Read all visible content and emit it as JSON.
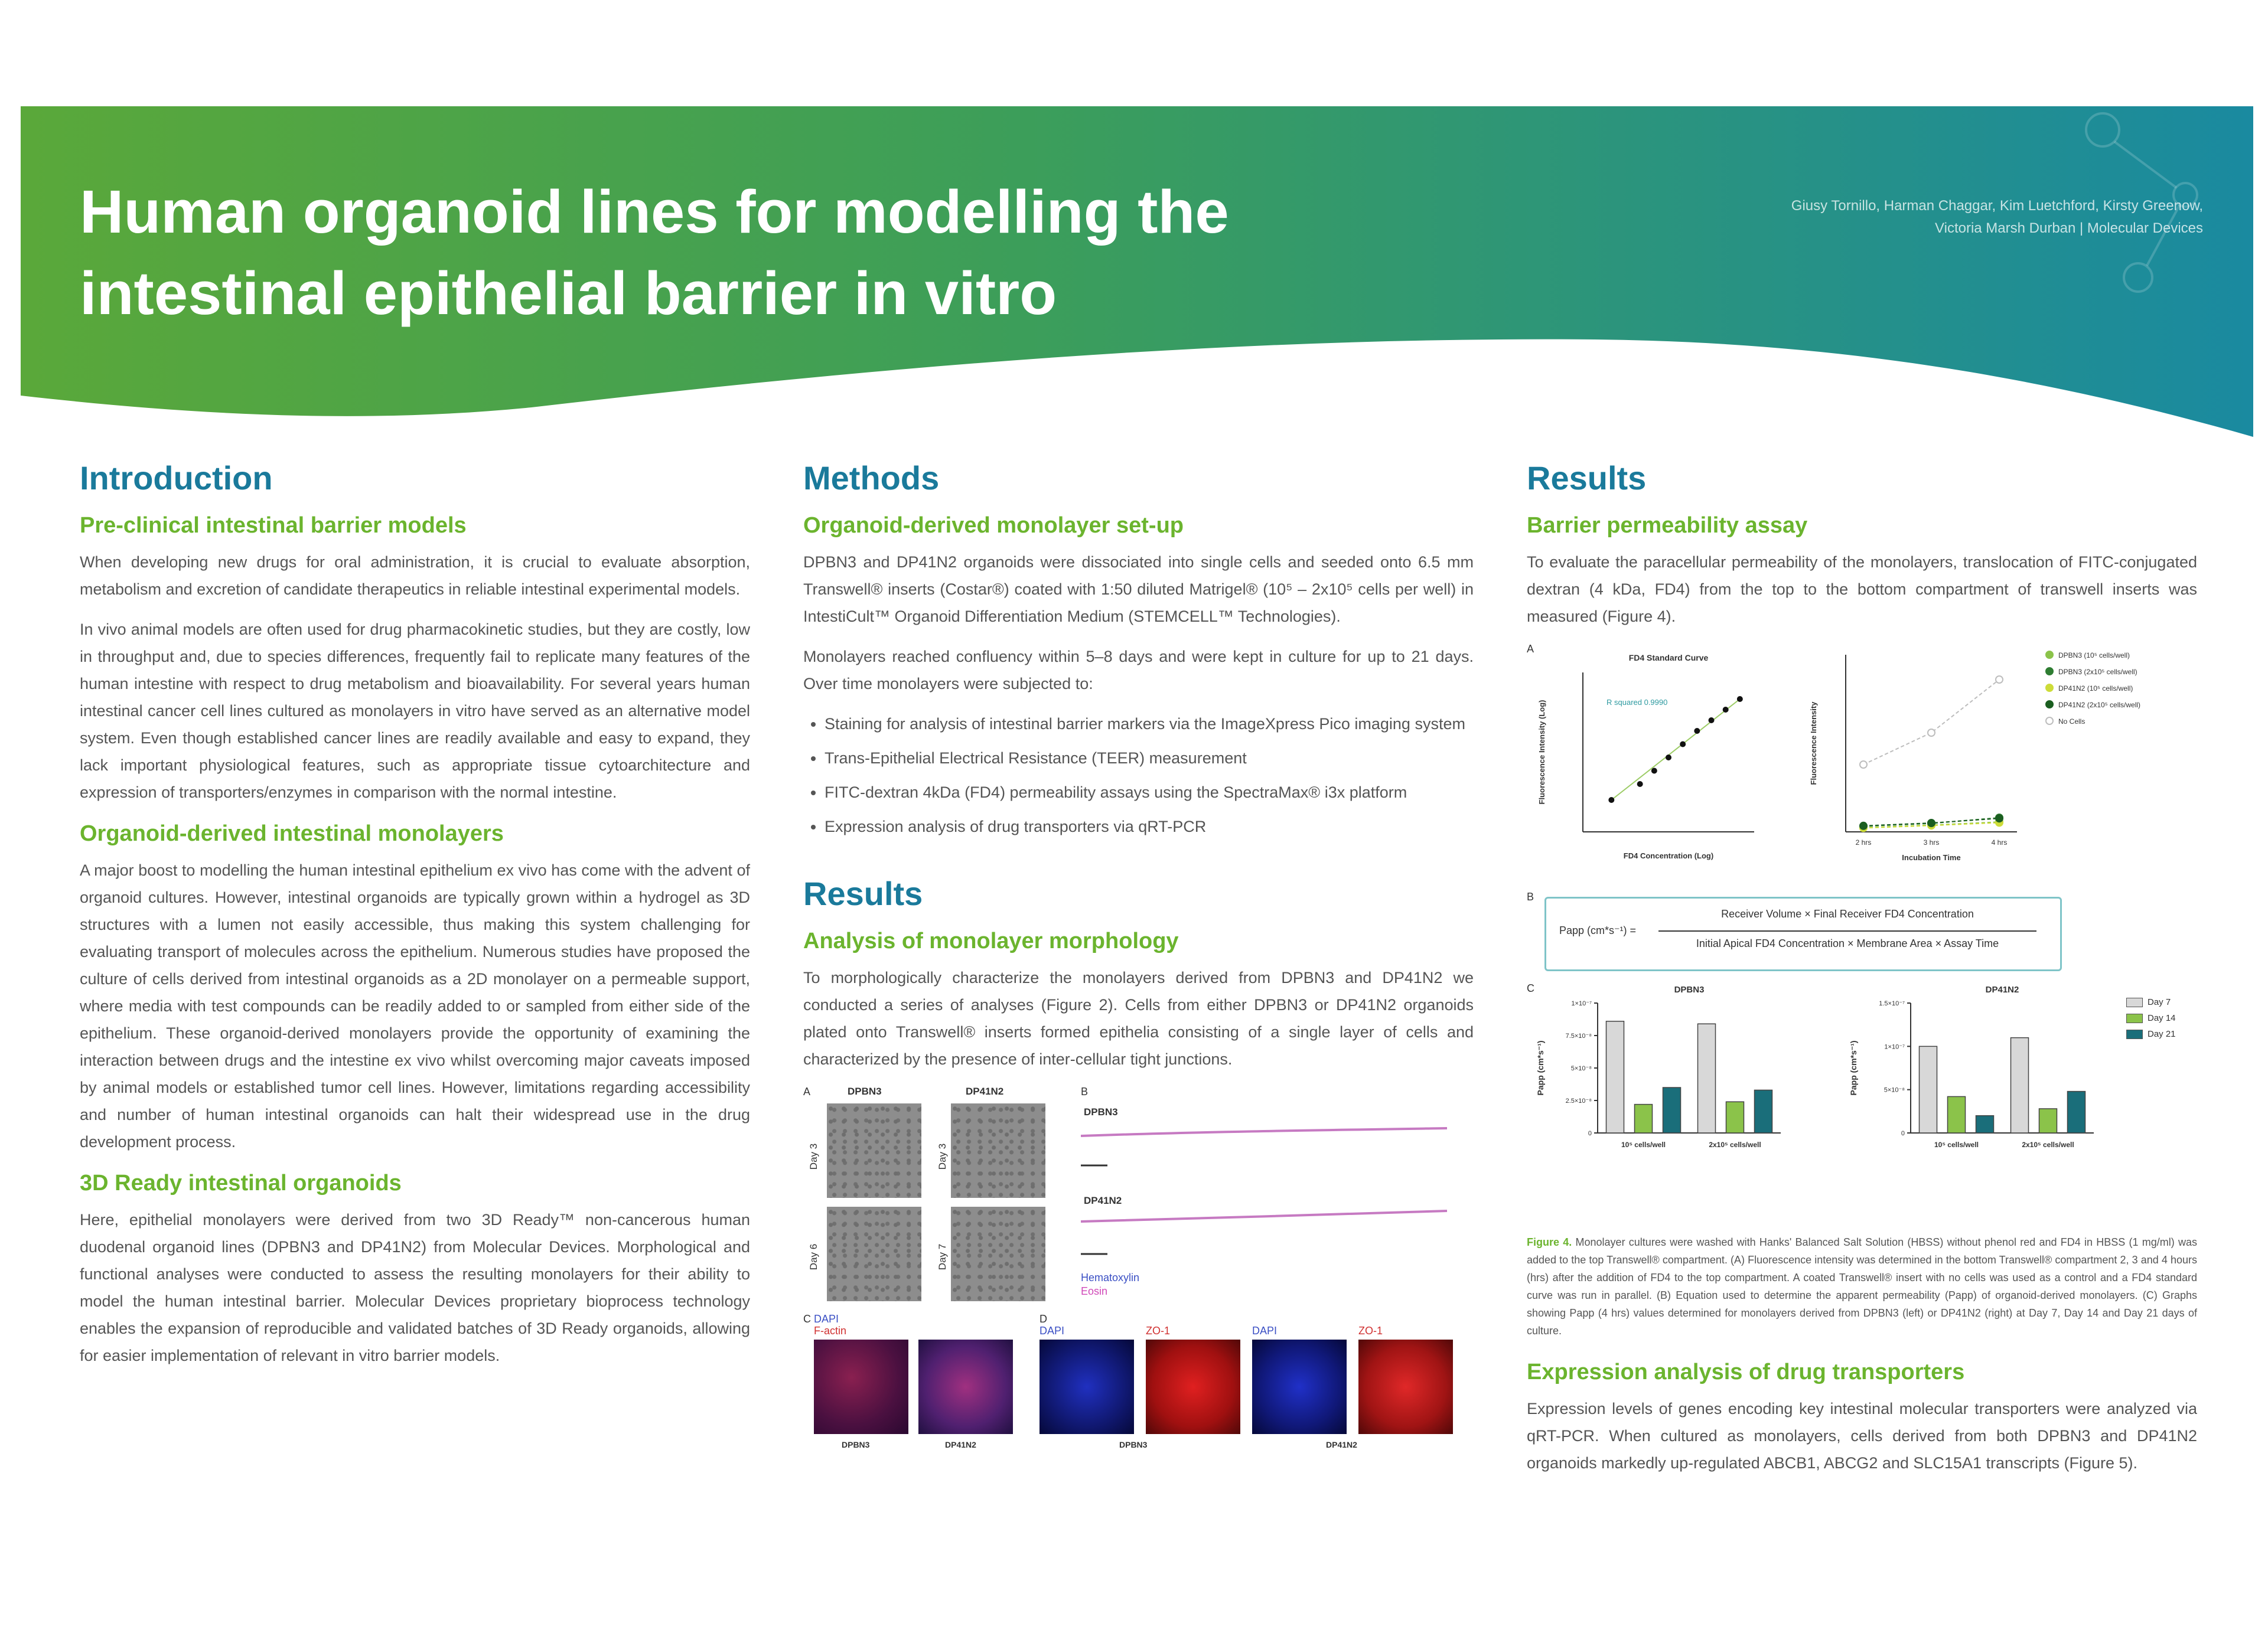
{
  "header": {
    "title_line1": "Human organoid lines for modelling the",
    "title_line2": "intestinal epithelial barrier in vitro",
    "authors_line1": "Giusy Tornillo, Harman Chaggar, Kim Luetchford, Kirsty Greenow,",
    "authors_line2": "Victoria Marsh Durban | Molecular Devices",
    "colors": {
      "green": "#5aa83a",
      "teal": "#1a8aa0",
      "heading": "#1a7a9b",
      "subheading": "#6bb42e"
    }
  },
  "intro": {
    "heading": "Introduction",
    "sub1": "Pre-clinical intestinal barrier models",
    "p1": "When developing new drugs for oral administration, it is crucial to evaluate absorption, metabolism and excretion of candidate therapeutics in reliable intestinal experimental models.",
    "p2": "In vivo animal models are often used for drug pharmacokinetic studies, but they are costly, low in throughput and, due to species differences, frequently fail to replicate many features of the human intestine with respect to drug metabolism and bioavailability. For several years human intestinal cancer cell lines cultured as monolayers in vitro have served as an alternative model system. Even though established cancer lines are readily available and easy to expand, they lack important physiological features, such as appropriate tissue cytoarchitecture and expression of transporters/enzymes in comparison with the normal intestine.",
    "sub2": "Organoid-derived intestinal monolayers",
    "p3": "A major boost to modelling the human intestinal epithelium ex vivo has come with the advent of organoid cultures. However, intestinal organoids are typically grown within a hydrogel as 3D structures with a lumen not easily accessible, thus making this system challenging for evaluating transport of molecules across the epithelium. Numerous studies have proposed the culture of cells derived from intestinal organoids as a 2D monolayer on a permeable support, where media with test compounds can be readily added to or sampled from either side of the epithelium. These organoid-derived monolayers provide the opportunity of examining the interaction between drugs and the intestine ex vivo whilst overcoming major caveats imposed by animal models or established tumor cell lines. However, limitations regarding accessibility and number of human intestinal organoids can halt their widespread use in the drug development process.",
    "sub3": "3D Ready intestinal organoids",
    "p4": "Here, epithelial monolayers were derived from two 3D Ready™ non-cancerous human duodenal organoid lines (DPBN3 and DP41N2) from Molecular Devices. Morphological and functional analyses were conducted to assess the resulting monolayers for their ability to model the human intestinal barrier. Molecular Devices proprietary bioprocess technology enables the expansion of reproducible and validated batches of 3D Ready organoids, allowing for easier implementation of relevant in vitro barrier models."
  },
  "methods": {
    "heading": "Methods",
    "sub1": "Organoid-derived monolayer set-up",
    "p1": "DPBN3 and DP41N2 organoids were dissociated into single cells and seeded onto 6.5 mm Transwell® inserts (Costar®) coated with 1:50 diluted Matrigel® (10⁵ – 2x10⁵ cells per well) in IntestiCult™ Organoid Differentiation Medium (STEMCELL™ Technologies).",
    "p2": "Monolayers reached confluency within 5–8 days and were kept in culture for up to 21 days. Over time monolayers were subjected to:",
    "bullets": [
      "Staining for analysis of intestinal barrier markers via the ImageXpress Pico imaging system",
      "Trans-Epithelial Electrical Resistance (TEER) measurement",
      "FITC-dextran 4kDa (FD4) permeability assays using the SpectraMax® i3x platform",
      "Expression analysis of drug transporters via qRT-PCR"
    ],
    "results_heading": "Results",
    "sub2": "Analysis of monolayer morphology",
    "p3": "To morphologically characterize the monolayers derived from DPBN3 and DP41N2 we conducted a series of analyses (Figure 2). Cells from either DPBN3 or DP41N2 organoids plated onto Transwell® inserts formed epithelia consisting of a single layer of cells and characterized by the presence of inter-cellular tight junctions.",
    "fig2": {
      "label_a": "A",
      "label_b": "B",
      "label_c": "C",
      "label_d": "D",
      "col_dpbn3": "DPBN3",
      "col_dp41n2": "DP41N2",
      "row_day3": "Day 3",
      "row_day6": "Day 6",
      "row_day7": "Day 7",
      "b_dpbn3": "DPBN3",
      "b_dp41n2": "DP41N2",
      "hematoxylin": "Hematoxylin",
      "eosin": "Eosin",
      "dapi": "DAPI",
      "factin": "F-actin",
      "zo1": "ZO-1",
      "bottom_dpbn3": "DPBN3",
      "bottom_dp41n2": "DP41N2"
    }
  },
  "results": {
    "heading": "Results",
    "sub1": "Barrier permeability assay",
    "p1": "To evaluate the paracellular permeability of the monolayers, translocation of FITC-conjugated dextran (4 kDa, FD4) from the top to the bottom compartment of transwell inserts was measured (Figure 4).",
    "fig4": {
      "label_a": "A",
      "label_b": "B",
      "label_c": "C",
      "equation_lhs": "Papp (cm*s⁻¹) =",
      "equation_num": "Receiver Volume × Final Receiver FD4 Concentration",
      "equation_den": "Initial Apical FD4 Concentration × Membrane Area × Assay Time",
      "legend_day7": "Day 7",
      "legend_day14": "Day 14",
      "legend_day21": "Day 21"
    },
    "caption_label": "Figure 4.",
    "caption": "Monolayer cultures were washed with Hanks' Balanced Salt Solution (HBSS) without phenol red and FD4 in HBSS (1 mg/ml) was added to the top Transwell® compartment. (A) Fluorescence intensity was determined in the bottom Transwell® compartment 2, 3 and 4 hours (hrs) after the addition of FD4 to the top compartment. A coated Transwell® insert with no cells was used as a control and a FD4 standard curve was run in parallel. (B) Equation used to determine the apparent permeability (Papp) of organoid-derived monolayers. (C) Graphs showing Papp (4 hrs) values determined for monolayers derived from DPBN3 (left) or DP41N2 (right) at Day 7, Day 14 and Day 21 days of culture.",
    "sub2": "Expression analysis of drug transporters",
    "p2": "Expression levels of genes encoding key intestinal molecular transporters were analyzed via qRT-PCR. When cultured as monolayers, cells derived from both DPBN3 and DP41N2 organoids markedly up-regulated ABCB1, ABCG2 and SLC15A1 transcripts (Figure 5)."
  },
  "chart_data": [
    {
      "type": "scatter",
      "title": "FD4 Standard Curve",
      "xlabel": "FD4 Concentration (Log)",
      "ylabel": "Fluorescence Intensity (Log)",
      "annotation": "R squared 0.9990",
      "x": [
        -9,
        -8,
        -7.5,
        -7,
        -6.5,
        -6,
        -5.5,
        -5,
        -4.5
      ],
      "y": [
        1.2,
        1.8,
        2.3,
        2.8,
        3.3,
        3.8,
        4.2,
        4.6,
        5.0
      ],
      "xlim": [
        -10,
        -4
      ],
      "ylim": [
        0,
        6
      ]
    },
    {
      "type": "line",
      "xlabel": "Incubation Time",
      "ylabel": "Fluorescence Intensity",
      "categories": [
        "2 hrs",
        "3 hrs",
        "4 hrs"
      ],
      "series": [
        {
          "name": "DPBN3 (10⁵ cells/well)",
          "values": [
            60,
            95,
            140
          ],
          "color": "#8bc34a"
        },
        {
          "name": "DPBN3 (2x10⁵ cells/well)",
          "values": [
            80,
            120,
            200
          ],
          "color": "#2e7d32"
        },
        {
          "name": "DP41N2 (10⁵ cells/well)",
          "values": [
            55,
            90,
            130
          ],
          "color": "#cddc39"
        },
        {
          "name": "DP41N2 (2x10⁵ cells/well)",
          "values": [
            85,
            125,
            190
          ],
          "color": "#1b5e20"
        },
        {
          "name": "No Cells",
          "values": [
            950,
            1400,
            2150
          ],
          "color": "#bdbdbd"
        }
      ]
    },
    {
      "type": "bar",
      "title": "DPBN3",
      "ylabel": "Papp (cm*s⁻¹)",
      "categories": [
        "10⁵ cells/well",
        "2x10⁵ cells/well"
      ],
      "series": [
        {
          "name": "Day 7",
          "values": [
            8.6e-08,
            8.4e-08
          ],
          "color": "#d8d8d8"
        },
        {
          "name": "Day 14",
          "values": [
            2.2e-08,
            2.4e-08
          ],
          "color": "#8bc34a"
        },
        {
          "name": "Day 21",
          "values": [
            3.5e-08,
            3.3e-08
          ],
          "color": "#1a6e7a"
        }
      ],
      "ylim": [
        0,
        1e-07
      ],
      "yticks": [
        "0",
        "2.5×10⁻⁸",
        "5×10⁻⁸",
        "7.5×10⁻⁸",
        "1×10⁻⁷"
      ]
    },
    {
      "type": "bar",
      "title": "DP41N2",
      "ylabel": "Papp (cm*s⁻¹)",
      "categories": [
        "10⁵ cells/well",
        "2x10⁵ cells/well"
      ],
      "series": [
        {
          "name": "Day 7",
          "values": [
            1e-07,
            1.1e-07
          ],
          "color": "#d8d8d8"
        },
        {
          "name": "Day 14",
          "values": [
            4.2e-08,
            2.8e-08
          ],
          "color": "#8bc34a"
        },
        {
          "name": "Day 21",
          "values": [
            2e-08,
            4.8e-08
          ],
          "color": "#1a6e7a"
        }
      ],
      "ylim": [
        0,
        1.5e-07
      ],
      "yticks": [
        "0",
        "5×10⁻⁸",
        "1×10⁻⁷",
        "1.5×10⁻⁷"
      ]
    }
  ]
}
